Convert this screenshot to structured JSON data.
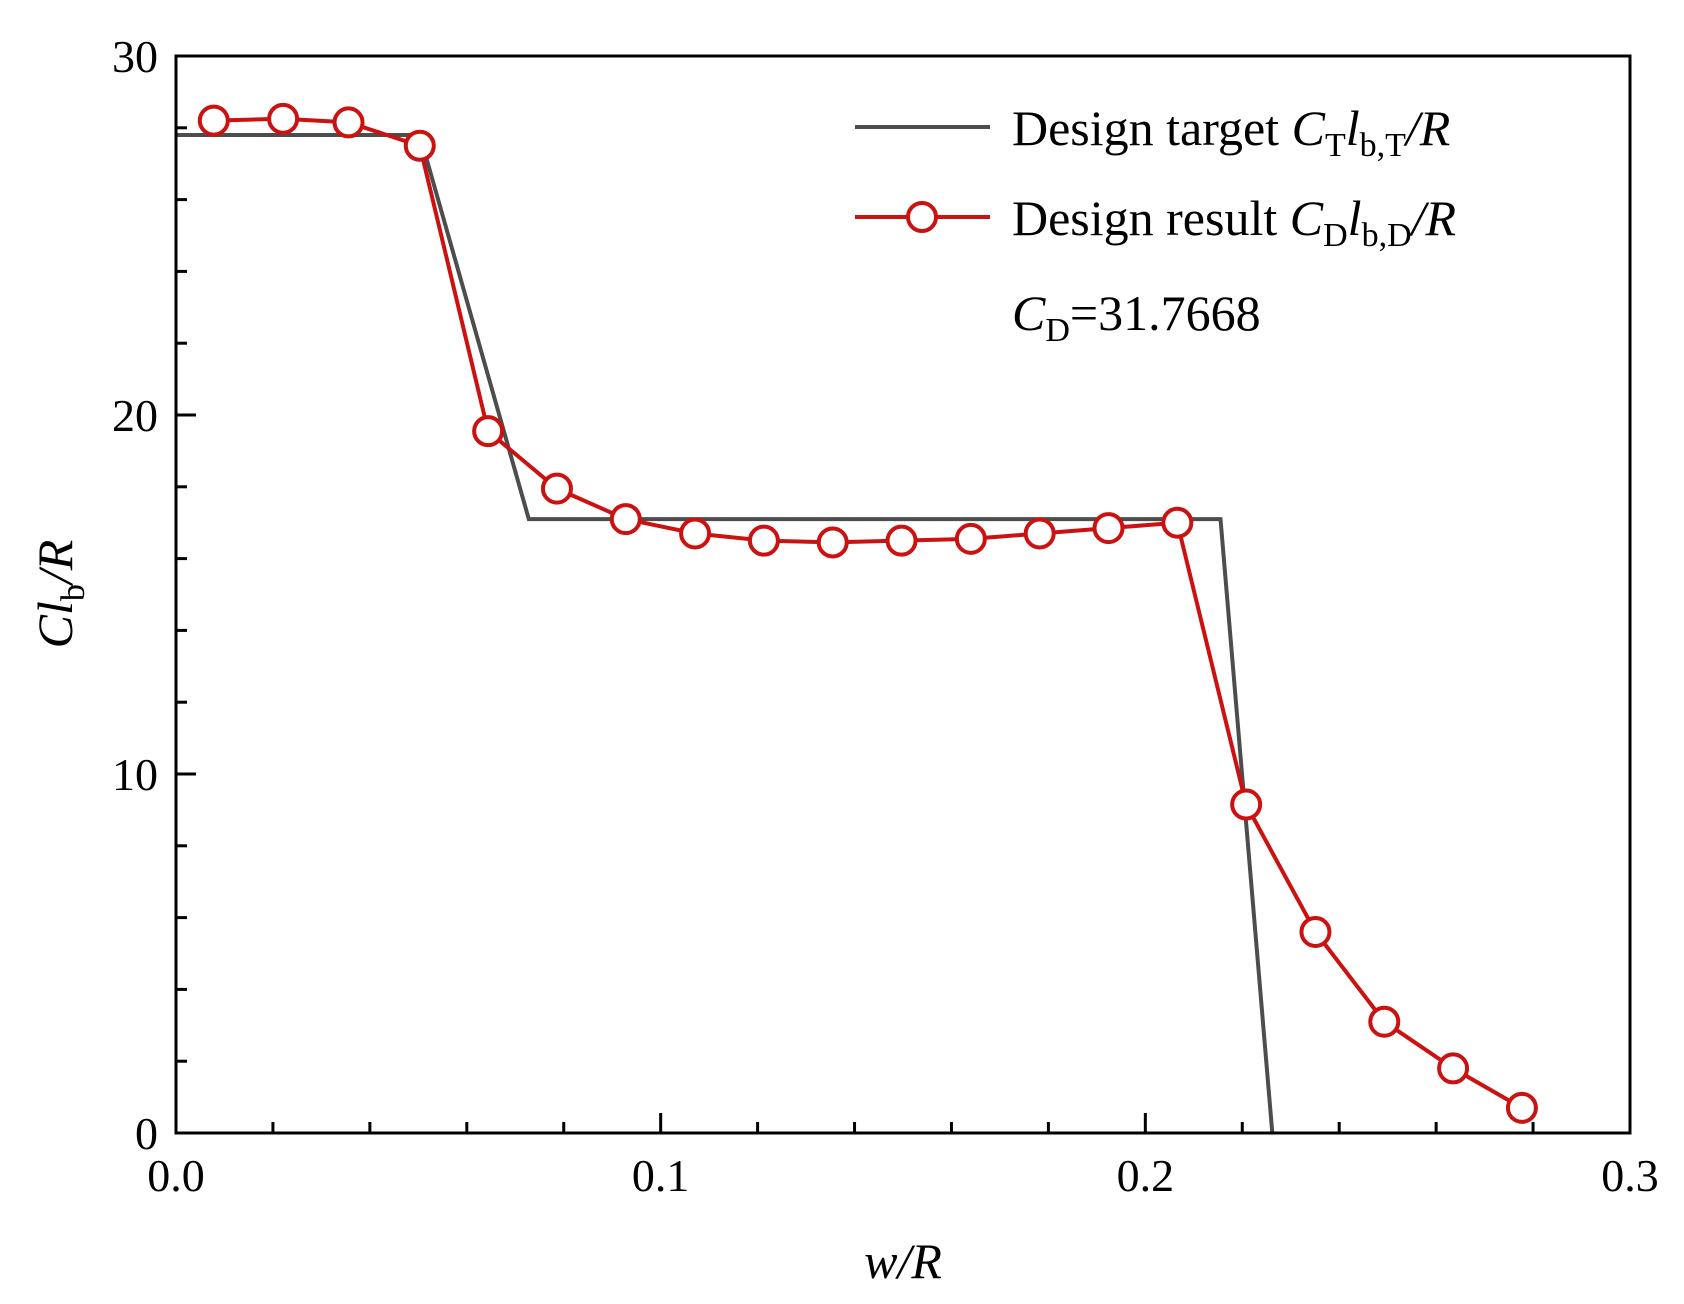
{
  "chart_data": {
    "type": "line",
    "xlabel": {
      "main": "w",
      "rest": "/R"
    },
    "ylabel": {
      "main": "Cl",
      "sub": "b",
      "rest": "/R"
    },
    "xlim": [
      0.0,
      0.3
    ],
    "ylim": [
      0,
      30
    ],
    "x_ticks": [
      0.0,
      0.1,
      0.2,
      0.3
    ],
    "x_tick_labels": [
      "0.0",
      "0.1",
      "0.2",
      "0.3"
    ],
    "x_minor_step": 0.02,
    "y_ticks": [
      0,
      10,
      20,
      30
    ],
    "y_tick_labels": [
      "0",
      "10",
      "20",
      "30"
    ],
    "y_minor_step": 2,
    "legend_position": "top-right",
    "series": [
      {
        "name": "Design target",
        "legend": {
          "prefix": "Design target ",
          "C": "C",
          "C_sub": "T",
          "l": "l",
          "l_sub": "b,T",
          "suffix": "/R"
        },
        "color": "#4d4d4d",
        "marker": "none",
        "x": [
          0.0,
          0.0503,
          0.0728,
          0.2155,
          0.2262
        ],
        "y": [
          27.8,
          27.8,
          17.1,
          17.1,
          0.0
        ]
      },
      {
        "name": "Design result",
        "legend": {
          "prefix": "Design result ",
          "C": "C",
          "C_sub": "D",
          "l": "l",
          "l_sub": "b,D",
          "suffix": "/R"
        },
        "color": "#cc1111",
        "marker": "circle",
        "x": [
          0.0078,
          0.0221,
          0.0356,
          0.0503,
          0.0644,
          0.0786,
          0.0928,
          0.1071,
          0.1213,
          0.1355,
          0.1497,
          0.164,
          0.1782,
          0.1924,
          0.2066,
          0.2208,
          0.2351,
          0.2493,
          0.2635,
          0.2777
        ],
        "y": [
          28.2,
          28.25,
          28.15,
          27.5,
          19.55,
          17.95,
          17.1,
          16.7,
          16.5,
          16.45,
          16.5,
          16.55,
          16.7,
          16.85,
          17.0,
          9.15,
          5.6,
          3.1,
          1.8,
          0.7
        ]
      }
    ],
    "annotation": {
      "C": "C",
      "sub": "D",
      "text": "=31.7668"
    }
  }
}
